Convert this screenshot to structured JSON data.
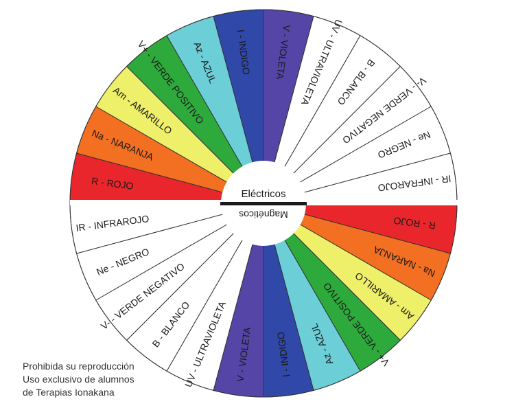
{
  "colors": {
    "R": "#e8262c",
    "Na": "#f36f21",
    "Am": "#eef06a",
    "Vp": "#2eaa3c",
    "Az": "#6ccfd8",
    "I": "#3048a8",
    "V": "#5545a6",
    "white": "#ffffff",
    "divider": "#1a1a1a"
  },
  "hub": {
    "top_label": "Eléctricos",
    "bottom_label": "Magnéticos"
  },
  "wheel": {
    "top_half": [
      {
        "key": "R",
        "label": "R - ROJO",
        "color": "#e8262c"
      },
      {
        "key": "Na",
        "label": "Na - NARANJA",
        "color": "#f36f21"
      },
      {
        "key": "Am",
        "label": "Am - AMARILLO",
        "color": "#eef06a"
      },
      {
        "key": "Vp",
        "label": "V+ - VERDE POSITIVO",
        "color": "#2eaa3c"
      },
      {
        "key": "Az",
        "label": "Az - AZUL",
        "color": "#6ccfd8"
      },
      {
        "key": "I",
        "label": "I - INDIGO",
        "color": "#3048a8"
      },
      {
        "key": "V",
        "label": "V - VIOLETA",
        "color": "#5545a6"
      },
      {
        "key": "UV",
        "label": "UV - ULTRAVIOLETA",
        "color": "#ffffff"
      },
      {
        "key": "B",
        "label": "B - BLANCO",
        "color": "#ffffff"
      },
      {
        "key": "Vn",
        "label": "V- - VERDE NEGATIVO",
        "color": "#ffffff"
      },
      {
        "key": "Ne",
        "label": "Ne - NEGRO",
        "color": "#ffffff"
      },
      {
        "key": "IR",
        "label": "IR - INFRAROJO",
        "color": "#ffffff"
      }
    ]
  },
  "footer": {
    "line1": "Prohibida su reproducción",
    "line2": "Uso exclusivo de alumnos",
    "line3": "de Terapias Ionakana"
  }
}
